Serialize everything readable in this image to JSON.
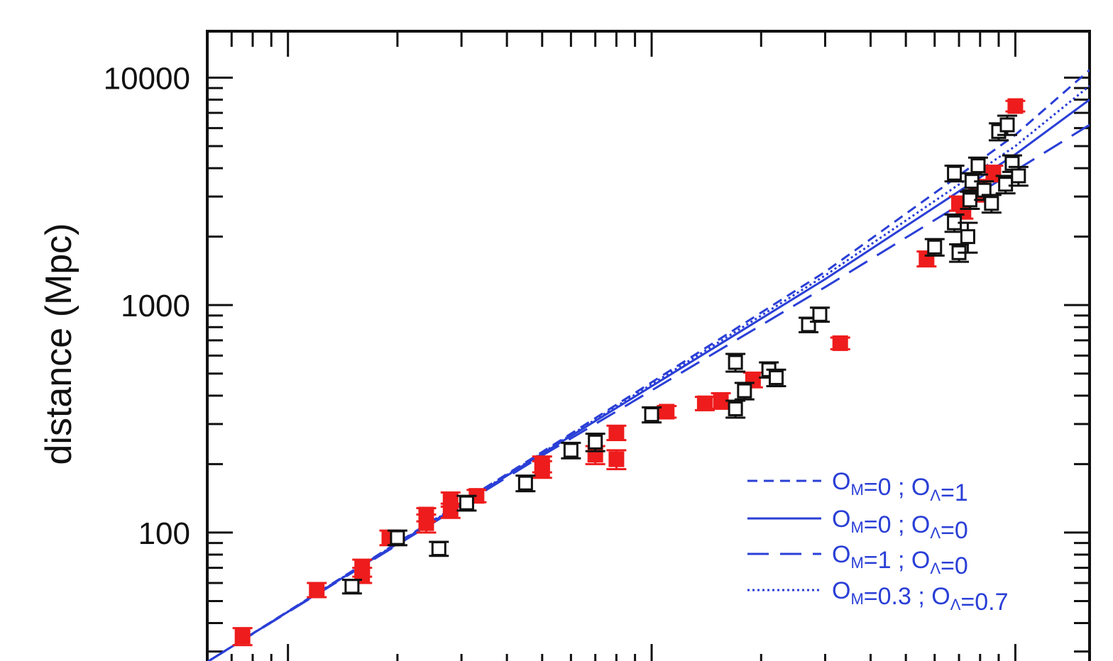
{
  "chart_data": {
    "type": "scatter",
    "title": "",
    "xlabel": "",
    "ylabel": "distance (Mpc)",
    "y_scale": "log",
    "x_scale": "log",
    "xlim": [
      0.006,
      1.6
    ],
    "ylim": [
      25,
      16000
    ],
    "ytick_labels": [
      "100",
      "1000",
      "10000"
    ],
    "ytick_values": [
      100,
      1000,
      10000
    ],
    "grid": false,
    "legend_position": "bottom-right",
    "colors": {
      "red": "#ee1c1c",
      "black": "#111111",
      "blue": "#2a3fd6"
    },
    "series": [
      {
        "marker": "filled-square",
        "color": "#ee1c1c",
        "x": [
          0.0075,
          0.012,
          0.016,
          0.016,
          0.019,
          0.024,
          0.024,
          0.028,
          0.028,
          0.033,
          0.05,
          0.05,
          0.07,
          0.08,
          0.08,
          0.11,
          0.14,
          0.155,
          0.19,
          0.33,
          0.57,
          0.7,
          0.72,
          0.78,
          0.8,
          0.87,
          1.0
        ],
        "y": [
          35,
          56,
          65,
          70,
          95,
          120,
          110,
          125,
          140,
          145,
          200,
          190,
          220,
          210,
          275,
          340,
          370,
          380,
          470,
          680,
          1600,
          2800,
          2600,
          3100,
          3300,
          3800,
          7500
        ],
        "y_lower": [
          32,
          52,
          60,
          64,
          88,
          112,
          100,
          116,
          130,
          136,
          184,
          174,
          200,
          190,
          255,
          320,
          345,
          350,
          435,
          640,
          1480,
          2600,
          2400,
          2850,
          3050,
          3500,
          7100
        ],
        "y_upper": [
          38,
          60,
          70,
          76,
          102,
          128,
          120,
          134,
          150,
          154,
          216,
          206,
          240,
          230,
          295,
          360,
          395,
          410,
          505,
          720,
          1720,
          3000,
          2800,
          3350,
          3550,
          4100,
          7900
        ]
      },
      {
        "marker": "open-square",
        "color": "#111111",
        "x": [
          0.015,
          0.02,
          0.026,
          0.031,
          0.045,
          0.06,
          0.07,
          0.1,
          0.17,
          0.17,
          0.18,
          0.21,
          0.22,
          0.27,
          0.29,
          0.6,
          0.68,
          0.68,
          0.7,
          0.74,
          0.75,
          0.76,
          0.79,
          0.82,
          0.86,
          0.9,
          0.94,
          0.95,
          0.98,
          1.02
        ],
        "y": [
          58,
          95,
          85,
          135,
          165,
          230,
          250,
          330,
          560,
          350,
          420,
          520,
          480,
          820,
          910,
          1800,
          3800,
          2300,
          1700,
          2000,
          2900,
          3500,
          4100,
          3200,
          2800,
          5800,
          3400,
          6200,
          4200,
          3700
        ],
        "y_lower": [
          54,
          88,
          79,
          125,
          152,
          212,
          228,
          305,
          510,
          320,
          385,
          480,
          440,
          760,
          845,
          1650,
          3500,
          2100,
          1550,
          1700,
          2650,
          3200,
          3750,
          2900,
          2550,
          5300,
          3100,
          5600,
          3850,
          3350
        ],
        "y_upper": [
          62,
          102,
          91,
          145,
          178,
          248,
          272,
          355,
          610,
          380,
          455,
          560,
          520,
          880,
          975,
          1950,
          4100,
          2500,
          1850,
          2300,
          3150,
          3800,
          4450,
          3500,
          3050,
          6300,
          3700,
          6800,
          4550,
          4050
        ]
      }
    ],
    "lines": [
      {
        "style": "dashed",
        "label": "ΩM=0 ; ΩΛ=1",
        "x": [
          0.006,
          0.05,
          0.3,
          1.0,
          1.6
        ],
        "y": [
          27,
          226,
          1400,
          5600,
          10800
        ]
      },
      {
        "style": "solid",
        "label": "ΩM=0 ; ΩΛ=0",
        "x": [
          0.006,
          0.05,
          0.3,
          1.0,
          1.6
        ],
        "y": [
          27,
          222,
          1300,
          4600,
          8000
        ]
      },
      {
        "style": "long-dashed",
        "label": "ΩM=1 ; ΩΛ=0",
        "x": [
          0.006,
          0.05,
          0.3,
          1.0,
          1.6
        ],
        "y": [
          27,
          218,
          1200,
          3900,
          6200
        ]
      },
      {
        "style": "dotted",
        "label": "ΩM=0.3 ; ΩΛ=0.7",
        "x": [
          0.006,
          0.05,
          0.3,
          1.0,
          1.6
        ],
        "y": [
          27,
          224,
          1350,
          5000,
          9200
        ]
      }
    ]
  },
  "legend": {
    "items": [
      {
        "style": "dashed",
        "om": "0",
        "ol": "1"
      },
      {
        "style": "solid",
        "om": "0",
        "ol": "0"
      },
      {
        "style": "long-dashed",
        "om": "1",
        "ol": "0"
      },
      {
        "style": "dotted",
        "om": "0.3",
        "ol": "0.7"
      }
    ],
    "omega_symbol": "O",
    "m_subscript": "M",
    "lambda_subscript": "Λ",
    "separator": ";",
    "equals": "="
  }
}
